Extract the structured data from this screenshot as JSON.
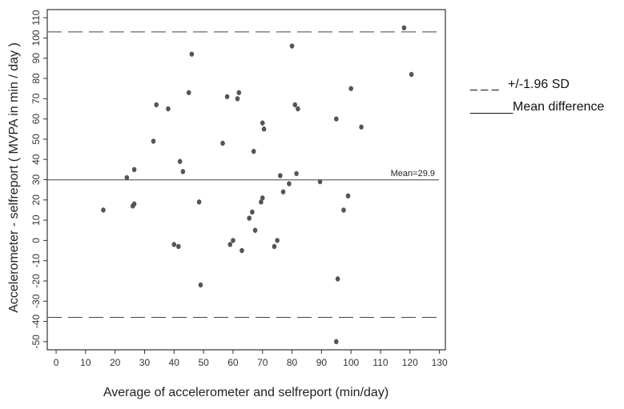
{
  "chart_data": {
    "type": "scatter",
    "xlabel": "Average of accelerometer and selfreport (min/day)",
    "ylabel": "Accelerometer - selfreport ( MVPA in min / day )",
    "xlim": [
      -3,
      132
    ],
    "ylim": [
      -54,
      114
    ],
    "xticks": [
      0,
      10,
      20,
      30,
      40,
      50,
      60,
      70,
      80,
      90,
      100,
      110,
      120,
      130
    ],
    "yticks": [
      -50,
      -40,
      -30,
      -20,
      -10,
      0,
      10,
      20,
      30,
      40,
      50,
      60,
      70,
      80,
      90,
      100,
      110
    ],
    "grid": false,
    "points": [
      {
        "x": 16,
        "y": 15
      },
      {
        "x": 24,
        "y": 31
      },
      {
        "x": 26,
        "y": 17
      },
      {
        "x": 26.5,
        "y": 18
      },
      {
        "x": 26.5,
        "y": 35
      },
      {
        "x": 33,
        "y": 49
      },
      {
        "x": 34,
        "y": 67
      },
      {
        "x": 38,
        "y": 65
      },
      {
        "x": 40,
        "y": -2
      },
      {
        "x": 41.5,
        "y": -3
      },
      {
        "x": 42,
        "y": 39
      },
      {
        "x": 43,
        "y": 34
      },
      {
        "x": 45,
        "y": 73
      },
      {
        "x": 46,
        "y": 92
      },
      {
        "x": 48.5,
        "y": 19
      },
      {
        "x": 49,
        "y": -22
      },
      {
        "x": 56.5,
        "y": 48
      },
      {
        "x": 58,
        "y": 71
      },
      {
        "x": 59,
        "y": -2
      },
      {
        "x": 60,
        "y": 0
      },
      {
        "x": 61.5,
        "y": 70
      },
      {
        "x": 62,
        "y": 73
      },
      {
        "x": 63,
        "y": -5
      },
      {
        "x": 65.5,
        "y": 11
      },
      {
        "x": 66.5,
        "y": 14
      },
      {
        "x": 67,
        "y": 44
      },
      {
        "x": 67.5,
        "y": 5
      },
      {
        "x": 69.5,
        "y": 19
      },
      {
        "x": 70,
        "y": 21
      },
      {
        "x": 70,
        "y": 58
      },
      {
        "x": 70.5,
        "y": 55
      },
      {
        "x": 74,
        "y": -3
      },
      {
        "x": 75,
        "y": 0
      },
      {
        "x": 76,
        "y": 32
      },
      {
        "x": 77,
        "y": 24
      },
      {
        "x": 79,
        "y": 28
      },
      {
        "x": 80,
        "y": 96
      },
      {
        "x": 81,
        "y": 67
      },
      {
        "x": 81.5,
        "y": 33
      },
      {
        "x": 82,
        "y": 65
      },
      {
        "x": 89.5,
        "y": 29
      },
      {
        "x": 95,
        "y": 60
      },
      {
        "x": 95.5,
        "y": -19
      },
      {
        "x": 95,
        "y": -50
      },
      {
        "x": 97.5,
        "y": 15
      },
      {
        "x": 99,
        "y": 22
      },
      {
        "x": 100,
        "y": 75
      },
      {
        "x": 103.5,
        "y": 56
      },
      {
        "x": 118,
        "y": 105
      },
      {
        "x": 120.5,
        "y": 82
      }
    ],
    "mean_difference": 29.9,
    "mean_label": "Mean=29.9",
    "upper_limit": 103,
    "lower_limit": -38,
    "legend": {
      "placement": "right",
      "entries": [
        {
          "symbol": "_ _ _",
          "label": "+/-1.96 SD"
        },
        {
          "symbol": "______",
          "label": "Mean difference"
        }
      ]
    },
    "colors": {
      "points": "#555555",
      "lines": "#444444",
      "frame": "#333333"
    }
  }
}
